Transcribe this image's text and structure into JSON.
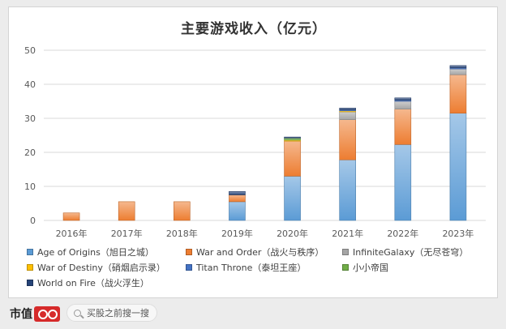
{
  "chart_data": {
    "type": "bar",
    "stacked": true,
    "title": "主要游戏收入（亿元）",
    "categories": [
      "2016年",
      "2017年",
      "2018年",
      "2019年",
      "2020年",
      "2021年",
      "2022年",
      "2023年"
    ],
    "ylim": [
      0,
      50
    ],
    "yticks": [
      0,
      10,
      20,
      30,
      40,
      50
    ],
    "grid": true,
    "legend_position": "bottom",
    "series": [
      {
        "name": "Age of Origins（旭日之城）",
        "color": "#5b9bd5",
        "values": [
          0,
          0,
          0,
          5.5,
          13.0,
          17.8,
          22.3,
          31.5
        ]
      },
      {
        "name": "War and Order（战火与秩序）",
        "color": "#ed7d31",
        "values": [
          2.2,
          5.5,
          5.5,
          2.0,
          10.3,
          11.8,
          10.4,
          11.3
        ]
      },
      {
        "name": "InfiniteGalaxy（无尽苍穹）",
        "color": "#a5a5a5",
        "values": [
          0,
          0,
          0,
          0,
          0,
          2.3,
          2.3,
          1.7
        ]
      },
      {
        "name": "War of Destiny（硝烟启示录）",
        "color": "#ffc000",
        "values": [
          0,
          0,
          0,
          0,
          0.3,
          0.3,
          0,
          0
        ]
      },
      {
        "name": "Titan Throne（泰坦王座）",
        "color": "#4472c4",
        "values": [
          0,
          0,
          0,
          0,
          0,
          0.3,
          0.3,
          0.3
        ]
      },
      {
        "name": "小小帝国",
        "color": "#70ad47",
        "values": [
          0,
          0,
          0,
          0,
          0.6,
          0,
          0,
          0
        ]
      },
      {
        "name": "World on Fire（战火浮生）",
        "color": "#264478",
        "values": [
          0,
          0,
          0,
          1.0,
          0.3,
          0.5,
          0.7,
          0.7
        ]
      }
    ]
  },
  "footer": {
    "brand": "市值",
    "search_placeholder": "买股之前搜一搜"
  }
}
